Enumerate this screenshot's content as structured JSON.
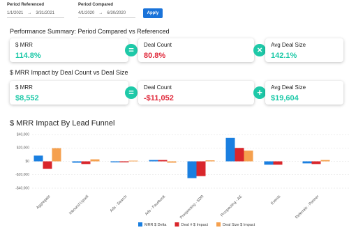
{
  "filters": {
    "referenced": {
      "label": "Period Referenced",
      "start": "1/1/2021",
      "end": "3/31/2021"
    },
    "compared": {
      "label": "Period Compared",
      "start": "4/1/2020",
      "end": "6/30/2020"
    },
    "button": "Apply"
  },
  "summary": {
    "title": "Performance Summary: Period Compared vs Referenced",
    "cards": [
      {
        "label": "$ MRR",
        "value": "114.8%"
      },
      {
        "label": "Deal Count",
        "value": "80.8%"
      },
      {
        "label": "Avg Deal Size",
        "value": "142.1%"
      }
    ]
  },
  "impact": {
    "title": "$ MRR Impact by Deal Count vs Deal Size",
    "cards": [
      {
        "label": "$ MRR",
        "value": "$8,552"
      },
      {
        "label": "Deal Count",
        "value": "-$11,052"
      },
      {
        "label": "Avg Deal Size",
        "value": "$19,604"
      }
    ]
  },
  "chart_data": {
    "type": "bar",
    "title": "$ MRR Impact By Lead Funnel",
    "categories": [
      "Aggregate",
      "Inbound Upsell",
      "Ads - Search",
      "Ads - Facebook",
      "Prospecting - SDR",
      "Prospecting - AE",
      "Events",
      "Referrals - Partner"
    ],
    "series": [
      {
        "name": "MRR $ Delta",
        "color": "#1a7fe0",
        "values": [
          8552,
          -2000,
          -1500,
          2000,
          -25000,
          35000,
          -5000,
          -3000
        ]
      },
      {
        "name": "Deal # $ Impact",
        "color": "#d9262b",
        "values": [
          -11052,
          -4000,
          -1500,
          2000,
          -22000,
          20000,
          -5000,
          -4000
        ]
      },
      {
        "name": "Deal Size $ Impact",
        "color": "#f5a04e",
        "values": [
          19604,
          3000,
          1000,
          -2000,
          1500,
          16000,
          0,
          2000
        ]
      }
    ],
    "ylim": [
      -40000,
      40000
    ],
    "yticks": [
      {
        "value": -40000,
        "label": "-$40,000"
      },
      {
        "value": -20000,
        "label": "-$20,000"
      },
      {
        "value": 0,
        "label": "$0"
      },
      {
        "value": 20000,
        "label": "$20,000"
      },
      {
        "value": 40000,
        "label": "$40,000"
      }
    ],
    "grid": true,
    "legend": "bottom"
  }
}
